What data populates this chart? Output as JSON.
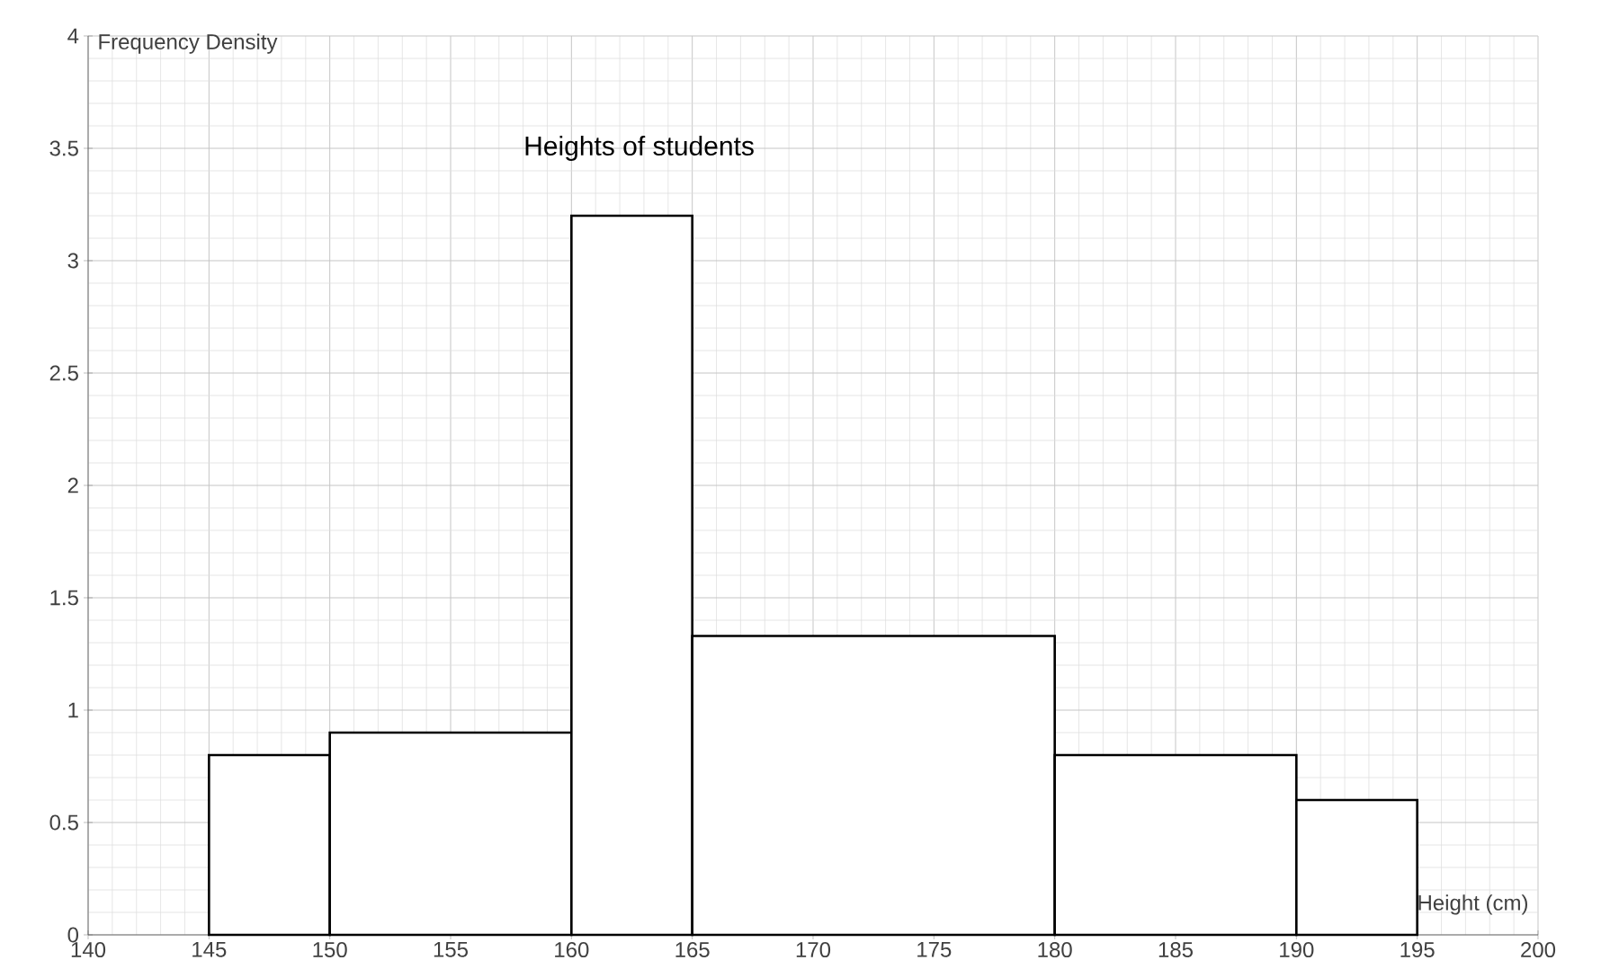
{
  "chart_data": {
    "type": "histogram",
    "title": "Heights of students",
    "xlabel": "Height (cm)",
    "ylabel": "Frequency Density",
    "bins": [
      145,
      150,
      160,
      165,
      180,
      190,
      195
    ],
    "values": [
      0.8,
      0.9,
      3.2,
      1.33,
      0.8,
      0.6
    ],
    "color": "#ffffff",
    "xlim": [
      140,
      200
    ],
    "xticks": [
      140,
      145,
      150,
      155,
      160,
      165,
      170,
      175,
      180,
      185,
      190,
      195,
      200
    ],
    "ylim": [
      0,
      4
    ],
    "yticks": [
      0,
      0.5,
      1,
      1.5,
      2,
      2.5,
      3,
      3.5,
      4
    ],
    "grid": true
  }
}
